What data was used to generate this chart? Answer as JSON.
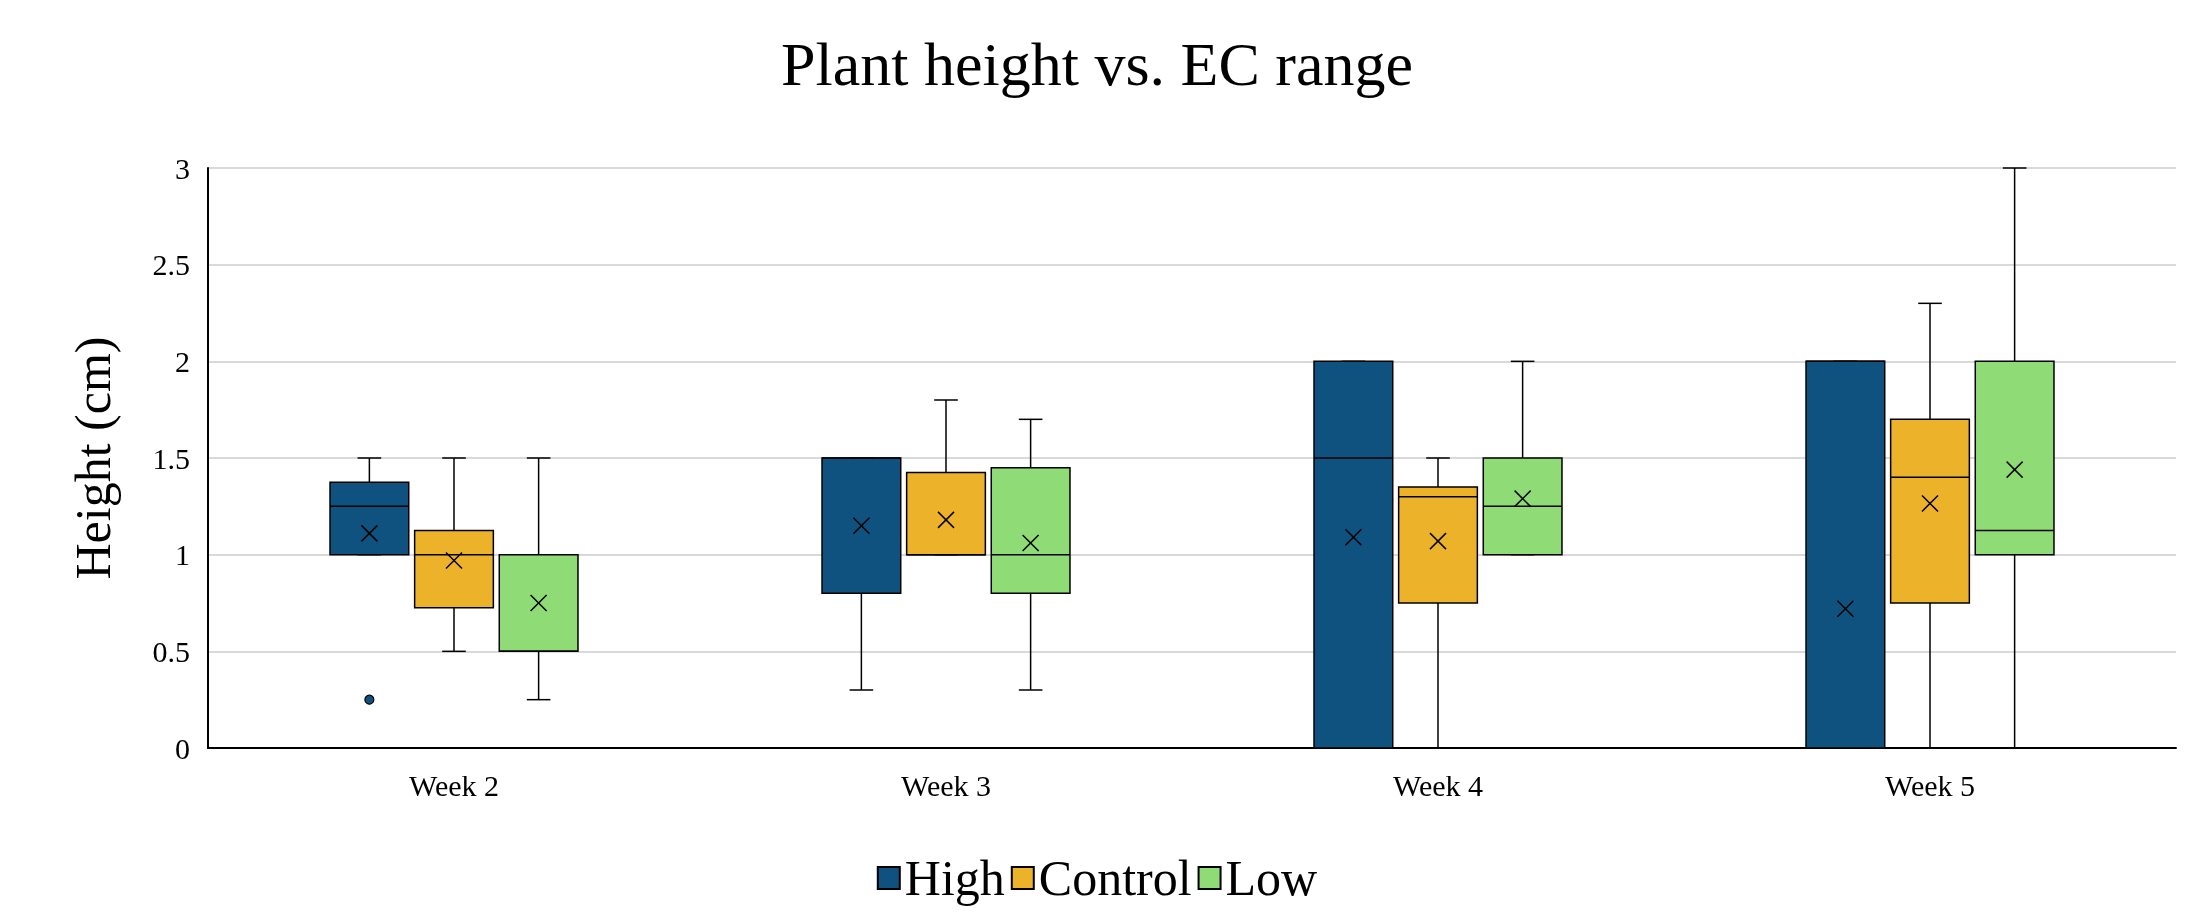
{
  "chart_data": {
    "type": "box",
    "title": "Plant height vs. EC range",
    "ylabel": "Height (cm)",
    "categories": [
      "Week 2",
      "Week 3",
      "Week 4",
      "Week 5"
    ],
    "ylim": [
      0,
      3
    ],
    "yticks": [
      0,
      0.5,
      1,
      1.5,
      2,
      2.5,
      3
    ],
    "grid": "y",
    "legend": "bottom",
    "series": [
      {
        "name": "High",
        "color": "#10527f",
        "boxes": [
          {
            "low": 1.0,
            "q1": 1.0,
            "median": 1.25,
            "q3": 1.375,
            "high": 1.5,
            "mean": 1.11,
            "outliers": [
              0.25
            ]
          },
          {
            "low": 0.3,
            "q1": 0.8,
            "median": 1.5,
            "q3": 1.5,
            "high": 1.5,
            "mean": 1.15
          },
          {
            "low": 0,
            "q1": 0,
            "median": 1.5,
            "q3": 2,
            "high": 2,
            "mean": 1.09
          },
          {
            "low": 0,
            "q1": 0,
            "median": 2,
            "q3": 2,
            "high": 2,
            "mean": 0.72
          }
        ]
      },
      {
        "name": "Control",
        "color": "#ebb22a",
        "boxes": [
          {
            "low": 0.5,
            "q1": 0.725,
            "median": 1.0,
            "q3": 1.125,
            "high": 1.5,
            "mean": 0.97
          },
          {
            "low": 1.0,
            "q1": 1.0,
            "median": 1.0,
            "q3": 1.425,
            "high": 1.8,
            "mean": 1.18
          },
          {
            "low": 0,
            "q1": 0.75,
            "median": 1.3,
            "q3": 1.35,
            "high": 1.5,
            "mean": 1.07
          },
          {
            "low": 0,
            "q1": 0.75,
            "median": 1.4,
            "q3": 1.7,
            "high": 2.3,
            "mean": 1.265
          }
        ]
      },
      {
        "name": "Low",
        "color": "#8fdb75",
        "boxes": [
          {
            "low": 0.25,
            "q1": 0.5,
            "median": 0.5,
            "q3": 1.0,
            "high": 1.5,
            "mean": 0.75
          },
          {
            "low": 0.3,
            "q1": 0.8,
            "median": 1.0,
            "q3": 1.45,
            "high": 1.7,
            "mean": 1.06
          },
          {
            "low": 1.0,
            "q1": 1.0,
            "median": 1.25,
            "q3": 1.5,
            "high": 2.0,
            "mean": 1.29
          },
          {
            "low": 0,
            "q1": 1.0,
            "median": 1.125,
            "q3": 2.0,
            "high": 3.0,
            "mean": 1.44
          }
        ]
      }
    ]
  }
}
